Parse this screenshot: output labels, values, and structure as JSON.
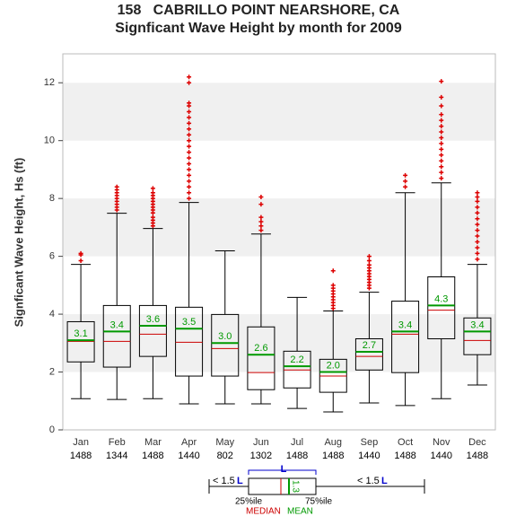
{
  "chart_data": {
    "type": "box",
    "title": "158   CABRILLO POINT NEARSHORE, CA",
    "subtitle": "Signficant Wave Height by month for 2009",
    "ylabel": "Signficant Wave Height, Hs (ft)",
    "categories": [
      "Jan",
      "Feb",
      "Mar",
      "Apr",
      "May",
      "Jun",
      "Jul",
      "Aug",
      "Sep",
      "Oct",
      "Nov",
      "Dec"
    ],
    "counts": [
      1488,
      1344,
      1488,
      1440,
      802,
      1302,
      1488,
      1488,
      1440,
      1488,
      1440,
      1488
    ],
    "whisker_low": [
      1.08,
      1.05,
      1.08,
      0.9,
      0.9,
      0.9,
      0.74,
      0.62,
      0.93,
      0.84,
      1.08,
      1.55
    ],
    "q1": [
      2.35,
      2.17,
      2.54,
      1.86,
      1.86,
      1.39,
      1.45,
      1.3,
      2.07,
      1.98,
      3.15,
      2.6
    ],
    "median": [
      3.06,
      3.06,
      3.31,
      3.03,
      2.81,
      1.98,
      2.07,
      1.86,
      2.54,
      3.31,
      4.14,
      3.09
    ],
    "q3": [
      3.74,
      4.3,
      4.3,
      4.24,
      3.99,
      3.56,
      2.72,
      2.44,
      3.15,
      4.45,
      5.29,
      3.87
    ],
    "whisker_high": [
      5.72,
      7.49,
      6.96,
      7.86,
      6.19,
      6.77,
      4.58,
      4.11,
      4.76,
      8.2,
      8.54,
      5.72
    ],
    "mean": {
      "values": [
        3.1,
        3.4,
        3.6,
        3.5,
        3.0,
        2.6,
        2.2,
        2.0,
        2.7,
        3.4,
        4.3,
        3.4
      ],
      "value_labels": [
        "3.1",
        "3.4",
        "3.6",
        "3.5",
        "3.0",
        "2.6",
        "2.2",
        "2.0",
        "2.7",
        "3.4",
        "4.3",
        "3.4"
      ]
    },
    "outliers": [
      [
        5.85,
        6.05,
        6.1
      ],
      [
        7.6,
        7.7,
        7.8,
        7.9,
        8.0,
        8.1,
        8.2,
        8.3,
        8.4
      ],
      [
        7.05,
        7.15,
        7.25,
        7.35,
        7.5,
        7.6,
        7.7,
        7.8,
        7.9,
        8.0,
        8.1,
        8.2,
        8.35
      ],
      [
        8.0,
        8.2,
        8.4,
        8.6,
        8.8,
        9.0,
        9.2,
        9.4,
        9.6,
        9.8,
        10.0,
        10.2,
        10.4,
        10.6,
        10.8,
        11.0,
        11.2,
        11.3,
        12.0,
        12.2
      ],
      [],
      [
        6.9,
        7.05,
        7.2,
        7.35,
        7.8,
        8.05
      ],
      [],
      [
        4.2,
        4.3,
        4.4,
        4.5,
        4.6,
        4.7,
        4.8,
        4.9,
        5.0,
        5.5
      ],
      [
        4.9,
        5.0,
        5.1,
        5.2,
        5.3,
        5.4,
        5.5,
        5.6,
        5.7,
        5.85,
        6.0
      ],
      [
        8.4,
        8.6,
        8.8
      ],
      [
        8.7,
        8.9,
        9.1,
        9.3,
        9.5,
        9.7,
        9.9,
        10.1,
        10.3,
        10.5,
        10.7,
        10.9,
        11.2,
        11.5,
        12.05
      ],
      [
        5.9,
        6.1,
        6.3,
        6.5,
        6.7,
        6.9,
        7.1,
        7.3,
        7.5,
        7.7,
        7.9,
        8.05,
        8.2
      ]
    ],
    "ylim": [
      0,
      13
    ],
    "yticks": [
      0,
      2,
      4,
      6,
      8,
      10,
      12
    ],
    "shaded_bands": true,
    "box_color": "#000000",
    "median_color": "#cc0000",
    "mean_color": "#009900",
    "outlier_color": "#dd0000",
    "band_color": "#f0f0f0",
    "legend_key": {
      "left_text": "< 1.5",
      "l_letter": "L",
      "right_text": "< 1.5",
      "mean_example": "1.3",
      "q1_text": "25%ile",
      "q3_text": "75%ile",
      "median_text": "MEDIAN",
      "mean_text": "MEAN"
    }
  }
}
